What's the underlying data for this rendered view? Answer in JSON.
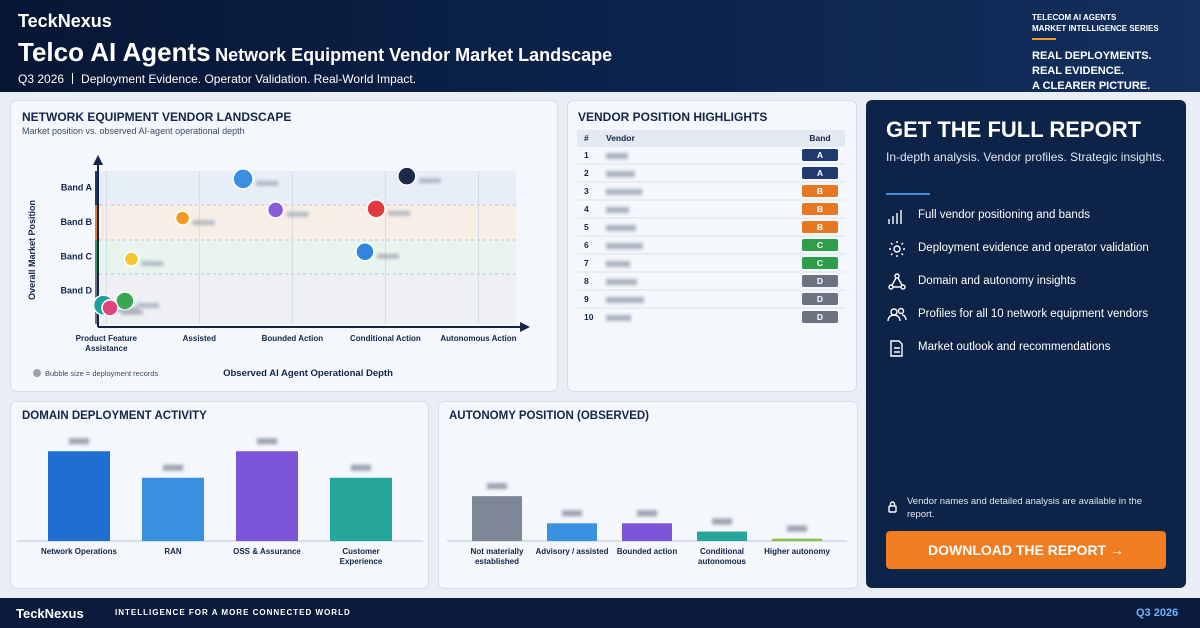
{
  "header": {
    "brand": "TeckNexus",
    "title": "Telco AI Agents",
    "subtitle": "Network Equipment Vendor Market Landscape",
    "period": "Q3 2026",
    "tagline": "Deployment Evidence. Operator Validation. Real-World Impact.",
    "series_label": [
      "TELECOM AI AGENTS",
      "MARKET INTELLIGENCE SERIES"
    ],
    "slogan": [
      "REAL DEPLOYMENTS.",
      "REAL EVIDENCE.",
      "A CLEARER PICTURE."
    ]
  },
  "chart_data": [
    {
      "type": "scatter",
      "title": "NETWORK EQUIPMENT VENDOR LANDSCAPE",
      "subtitle": "Market position vs. observed AI-agent operational depth",
      "x_label": "Observed AI Agent Operational Depth",
      "y_label": "Overall Market Position",
      "note": "Bubble size = deployment records",
      "xlim": [
        -0.1,
        4.5
      ],
      "ylim": [
        0,
        4.8
      ],
      "xticks": [
        {
          "value": 0,
          "label": "Product Feature Assistance"
        },
        {
          "value": 1,
          "label": "Assisted"
        },
        {
          "value": 2,
          "label": "Bounded Action"
        },
        {
          "value": 3,
          "label": "Conditional Action"
        },
        {
          "value": 4,
          "label": "Autonomous Action"
        }
      ],
      "yticks": [
        {
          "value": 1,
          "label": "Band D"
        },
        {
          "value": 2,
          "label": "Band C"
        },
        {
          "value": 3,
          "label": "Band B"
        },
        {
          "value": 4,
          "label": "Band A"
        }
      ],
      "x": [
        1.47,
        3.23,
        0.82,
        1.82,
        2.9,
        0.27,
        2.78,
        -0.03,
        0.2,
        0.04
      ],
      "values": [
        4.25,
        4.33,
        3.11,
        3.35,
        3.38,
        1.92,
        2.13,
        0.58,
        0.7,
        0.5
      ],
      "sizes": [
        10,
        9,
        7,
        8,
        9,
        7,
        9,
        10,
        9,
        8
      ],
      "colors": [
        "#3b8fe0",
        "#1c2b4a",
        "#f29a1f",
        "#8a5bd6",
        "#e0393e",
        "#f5c531",
        "#2f86dd",
        "#1aa39a",
        "#3aa655",
        "#e0457b"
      ]
    },
    {
      "type": "bar",
      "title": "DOMAIN DEPLOYMENT ACTIVITY",
      "categories": [
        "Network Operations",
        "RAN",
        "OSS & Assurance",
        "Customer Experience"
      ],
      "values": [
        88,
        62,
        88,
        62
      ],
      "colors": [
        "#1f6fd1",
        "#3b8fe0",
        "#7b55d8",
        "#26a69a"
      ]
    },
    {
      "type": "bar",
      "title": "AUTONOMY POSITION (OBSERVED)",
      "categories": [
        "Not materially established",
        "Advisory / assisted",
        "Bounded action",
        "Conditional autonomous",
        "Higher autonomy"
      ],
      "values": [
        38,
        15,
        15,
        8,
        2
      ],
      "colors": [
        "#7d8796",
        "#3b8fe0",
        "#7b55d8",
        "#26a69a",
        "#8bc34a"
      ]
    }
  ],
  "highlights": {
    "title": "VENDOR POSITION HIGHLIGHTS",
    "columns": [
      "#",
      "Vendor",
      "Band"
    ],
    "ranks": [
      1,
      2,
      3,
      4,
      5,
      6,
      7,
      8,
      9,
      10
    ],
    "bands": [
      "A",
      "A",
      "B",
      "B",
      "B",
      "C",
      "C",
      "D",
      "D",
      "D"
    ],
    "band_colors": {
      "A": "#1f3a6e",
      "B": "#e87722",
      "C": "#2e9e4a",
      "D": "#6b7280"
    }
  },
  "report": {
    "title": "GET THE FULL REPORT",
    "description": "In-depth analysis. Vendor profiles. Strategic insights.",
    "features": [
      "Full vendor positioning and bands",
      "Deployment evidence and operator validation",
      "Domain and autonomy insights",
      "Profiles for all 10 network equipment vendors",
      "Market outlook and recommendations"
    ],
    "note": "Vendor names and detailed analysis are available in the report.",
    "button": "DOWNLOAD THE REPORT →"
  },
  "footer": {
    "brand": "TeckNexus",
    "tagline": "INTELLIGENCE FOR A MORE CONNECTED WORLD",
    "period": "Q3 2026"
  }
}
